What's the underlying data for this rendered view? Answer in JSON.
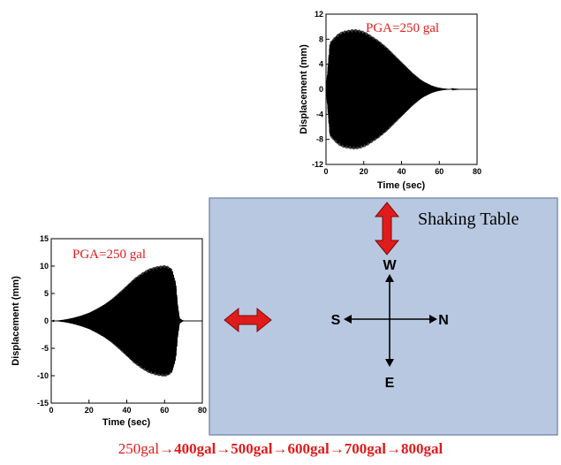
{
  "colors": {
    "table": "#b8c8e1",
    "table_border": "#6d7fa6",
    "arrow_red": "#e01b1b",
    "arrow_outline": "#7a0c0c",
    "label_red": "#e01b1b",
    "trace": "#000000"
  },
  "table": {
    "label": "Shaking Table",
    "compass": {
      "north": "N",
      "south": "S",
      "east": "E",
      "west": "W"
    }
  },
  "chart_data": [
    {
      "id": "top",
      "type": "line",
      "title": "PGA=250 gal",
      "xlabel": "Time (sec)",
      "ylabel": "Displacement (mm)",
      "xlim": [
        0,
        80
      ],
      "ylim": [
        -12,
        12
      ],
      "xticks": [
        0,
        20,
        40,
        60,
        80
      ],
      "yticks": [
        -12,
        -8,
        -4,
        0,
        4,
        8,
        12
      ],
      "grid": false,
      "envelope": {
        "time": [
          0,
          2,
          4,
          6,
          8,
          10,
          12,
          14,
          16,
          18,
          20,
          22,
          24,
          26,
          28,
          30,
          32,
          34,
          36,
          38,
          40,
          42,
          44,
          46,
          48,
          50,
          52,
          54,
          56,
          58,
          60,
          62,
          64,
          66,
          68,
          70,
          72,
          74,
          76,
          78,
          80
        ],
        "amplitude": [
          0,
          7.5,
          8.2,
          8.8,
          9.2,
          9.4,
          9.5,
          9.6,
          9.6,
          9.5,
          9.3,
          9.0,
          8.6,
          8.2,
          7.8,
          7.3,
          6.8,
          6.2,
          5.6,
          5.0,
          4.4,
          3.8,
          3.2,
          2.6,
          2.1,
          1.6,
          1.2,
          0.9,
          0.6,
          0.4,
          0.25,
          0.15,
          0.08,
          0.04,
          0.02,
          0.01,
          0,
          0,
          0,
          0,
          0
        ]
      }
    },
    {
      "id": "left",
      "type": "line",
      "title": "PGA=250 gal",
      "xlabel": "Time (sec)",
      "ylabel": "Displacement (mm)",
      "xlim": [
        0,
        80
      ],
      "ylim": [
        -15,
        15
      ],
      "xticks": [
        0,
        20,
        40,
        60,
        80
      ],
      "yticks": [
        -15,
        -10,
        -5,
        0,
        5,
        10,
        15
      ],
      "grid": false,
      "envelope": {
        "time": [
          0,
          4,
          8,
          12,
          16,
          20,
          24,
          28,
          32,
          36,
          40,
          44,
          48,
          52,
          56,
          60,
          62,
          64,
          66,
          67,
          68,
          70,
          72,
          76,
          80
        ],
        "amplitude": [
          0,
          0.1,
          0.3,
          0.6,
          1.0,
          1.5,
          2.2,
          3.0,
          4.0,
          5.2,
          6.5,
          7.8,
          8.8,
          9.6,
          10.0,
          10.2,
          10.0,
          9.5,
          7.0,
          3.0,
          0.5,
          0,
          0,
          0,
          0
        ]
      }
    }
  ],
  "sequence": {
    "first": "250gal",
    "rest": "→400gal→500gal→600gal→700gal→800gal"
  }
}
